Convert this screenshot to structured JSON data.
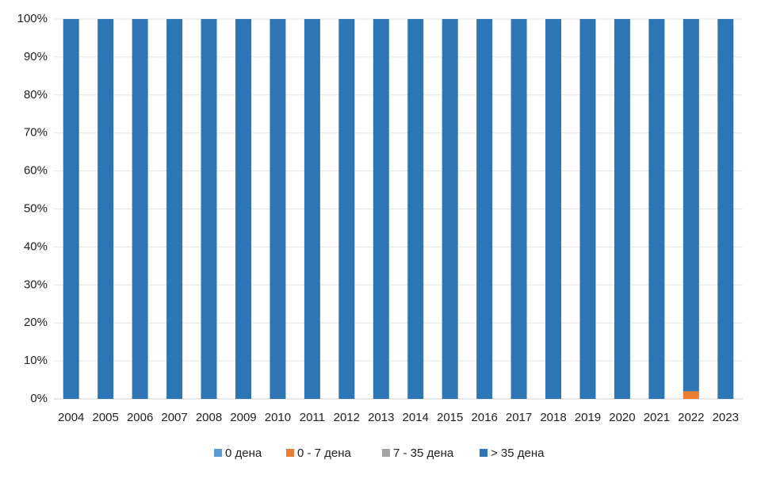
{
  "chart_data": {
    "type": "stacked-bar",
    "categories": [
      "2004",
      "2005",
      "2006",
      "2007",
      "2008",
      "2009",
      "2010",
      "2011",
      "2012",
      "2013",
      "2014",
      "2015",
      "2016",
      "2017",
      "2018",
      "2019",
      "2020",
      "2021",
      "2022",
      "2023"
    ],
    "series": [
      {
        "name": "0 дена",
        "color": "#5b9bd5",
        "values": [
          0,
          0,
          0,
          0,
          0,
          0,
          0,
          0,
          0,
          0,
          0,
          0,
          0,
          0,
          0,
          0,
          0,
          0,
          0,
          0
        ]
      },
      {
        "name": "0 - 7 дена",
        "color": "#ed7d31",
        "values": [
          0,
          0,
          0,
          0,
          0,
          0,
          0,
          0,
          0,
          0,
          0,
          0,
          0,
          0,
          0,
          0,
          0,
          0,
          2,
          0
        ]
      },
      {
        "name": "7 - 35 дена",
        "color": "#a5a5a5",
        "values": [
          0,
          0,
          0,
          0,
          0,
          0,
          0,
          0,
          0,
          0,
          0,
          0,
          0,
          0,
          0,
          0,
          0,
          0,
          0,
          0
        ]
      },
      {
        "name": "> 35 дена",
        "color": "#2e75b6",
        "values": [
          100,
          100,
          100,
          100,
          100,
          100,
          100,
          100,
          100,
          100,
          100,
          100,
          100,
          100,
          100,
          100,
          100,
          100,
          98,
          100
        ]
      }
    ],
    "ylim": [
      0,
      100
    ],
    "yticks": [
      {
        "value": 0,
        "label": "0%"
      },
      {
        "value": 10,
        "label": "10%"
      },
      {
        "value": 20,
        "label": "20%"
      },
      {
        "value": 30,
        "label": "30%"
      },
      {
        "value": 40,
        "label": "40%"
      },
      {
        "value": 50,
        "label": "50%"
      },
      {
        "value": 60,
        "label": "60%"
      },
      {
        "value": 70,
        "label": "70%"
      },
      {
        "value": 80,
        "label": "80%"
      },
      {
        "value": 90,
        "label": "90%"
      },
      {
        "value": 100,
        "label": "100%"
      }
    ],
    "grid": true,
    "legend": "bottom"
  }
}
